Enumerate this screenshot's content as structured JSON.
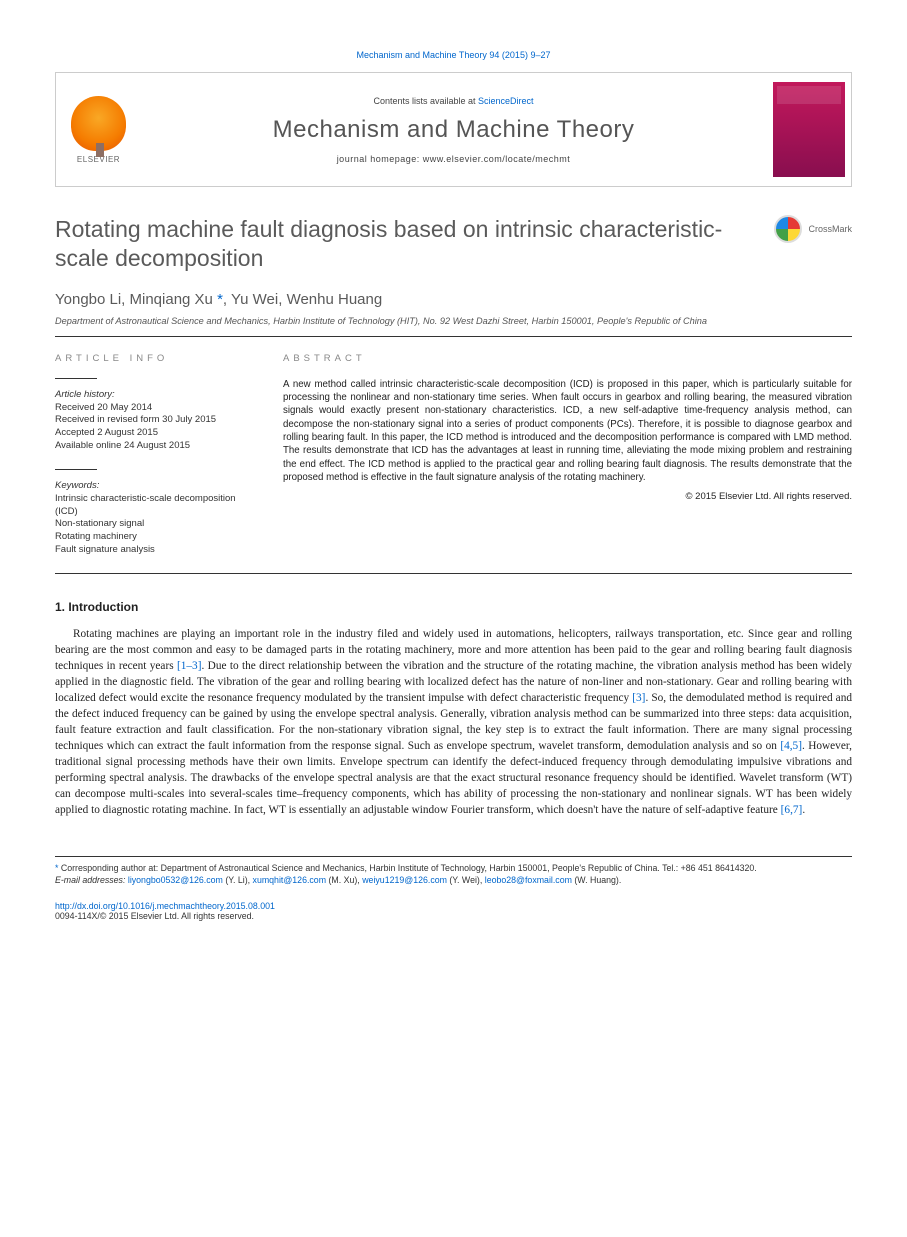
{
  "citation": "Mechanism and Machine Theory 94 (2015) 9–27",
  "banner": {
    "contents_prefix": "Contents lists available at ",
    "contents_link": "ScienceDirect",
    "journal": "Mechanism and Machine Theory",
    "homepage_label": "journal homepage: ",
    "homepage_url": "www.elsevier.com/locate/mechmt",
    "publisher_label": "ELSEVIER"
  },
  "article": {
    "title": "Rotating machine fault diagnosis based on intrinsic characteristic-scale decomposition",
    "crossmark": "CrossMark",
    "authors_html": "Yongbo Li, Minqiang Xu",
    "author1": "Yongbo Li, Minqiang Xu",
    "author_corr_mark": " *",
    "author_rest": ", Yu Wei, Wenhu Huang",
    "affiliation": "Department of Astronautical Science and Mechanics, Harbin Institute of Technology (HIT), No. 92 West Dazhi Street, Harbin 150001, People's Republic of China"
  },
  "info": {
    "heading": "ARTICLE INFO",
    "history_label": "Article history:",
    "history": [
      "Received 20 May 2014",
      "Received in revised form 30 July 2015",
      "Accepted 2 August 2015",
      "Available online 24 August 2015"
    ],
    "keywords_label": "Keywords:",
    "keywords": [
      "Intrinsic characteristic-scale decomposition (ICD)",
      "Non-stationary signal",
      "Rotating machinery",
      "Fault signature analysis"
    ]
  },
  "abstract": {
    "heading": "ABSTRACT",
    "text": "A new method called intrinsic characteristic-scale decomposition (ICD) is proposed in this paper, which is particularly suitable for processing the nonlinear and non-stationary time series. When fault occurs in gearbox and rolling bearing, the measured vibration signals would exactly present non-stationary characteristics. ICD, a new self-adaptive time-frequency analysis method, can decompose the non-stationary signal into a series of product components (PCs). Therefore, it is possible to diagnose gearbox and rolling bearing fault. In this paper, the ICD method is introduced and the decomposition performance is compared with LMD method. The results demonstrate that ICD has the advantages at least in running time, alleviating the mode mixing problem and restraining the end effect. The ICD method is applied to the practical gear and rolling bearing fault diagnosis. The results demonstrate that the proposed method is effective in the fault signature analysis of the rotating machinery.",
    "copyright": "© 2015 Elsevier Ltd. All rights reserved."
  },
  "section1": {
    "heading": "1. Introduction",
    "para": "Rotating machines are playing an important role in the industry filed and widely used in automations, helicopters, railways transportation, etc. Since gear and rolling bearing are the most common and easy to be damaged parts in the rotating machinery, more and more attention has been paid to the gear and rolling bearing fault diagnosis techniques in recent years [1–3]. Due to the direct relationship between the vibration and the structure of the rotating machine, the vibration analysis method has been widely applied in the diagnostic field. The vibration of the gear and rolling bearing with localized defect has the nature of non-liner and non-stationary. Gear and rolling bearing with localized defect would excite the resonance frequency modulated by the transient impulse with defect characteristic frequency [3]. So, the demodulated method is required and the defect induced frequency can be gained by using the envelope spectral analysis. Generally, vibration analysis method can be summarized into three steps: data acquisition, fault feature extraction and fault classification. For the non-stationary vibration signal, the key step is to extract the fault information. There are many signal processing techniques which can extract the fault information from the response signal. Such as envelope spectrum, wavelet transform, demodulation analysis and so on [4,5]. However, traditional signal processing methods have their own limits. Envelope spectrum can identify the defect-induced frequency through demodulating impulsive vibrations and performing spectral analysis. The drawbacks of the envelope spectral analysis are that the exact structural resonance frequency should be identified. Wavelet transform (WT) can decompose multi-scales into several-scales time–frequency components, which has ability of processing the non-stationary and nonlinear signals. WT has been widely applied to diagnostic rotating machine. In fact, WT is essentially an adjustable window Fourier transform, which doesn't have the nature of self-adaptive feature [6,7].",
    "ref_links": {
      "r1": "[1–3]",
      "r3": "[3]",
      "r4": "[4,5]",
      "r6": "[6,7]"
    }
  },
  "footnotes": {
    "corr": "Corresponding author at: Department of Astronautical Science and Mechanics, Harbin Institute of Technology, Harbin 150001, People's Republic of China. Tel.: +86 451 86414320.",
    "email_label": "E-mail addresses: ",
    "emails": [
      {
        "addr": "liyongbo0532@126.com",
        "who": " (Y. Li), "
      },
      {
        "addr": "xumqhit@126.com",
        "who": " (M. Xu), "
      },
      {
        "addr": "weiyu1219@126.com",
        "who": " (Y. Wei), "
      },
      {
        "addr": "leobo28@foxmail.com",
        "who": " (W. Huang)."
      }
    ]
  },
  "doi": {
    "url": "http://dx.doi.org/10.1016/j.mechmachtheory.2015.08.001",
    "issn_line": "0094-114X/© 2015 Elsevier Ltd. All rights reserved."
  },
  "colors": {
    "link": "#0066cc",
    "rule": "#333333",
    "heading_grey": "#888888"
  }
}
